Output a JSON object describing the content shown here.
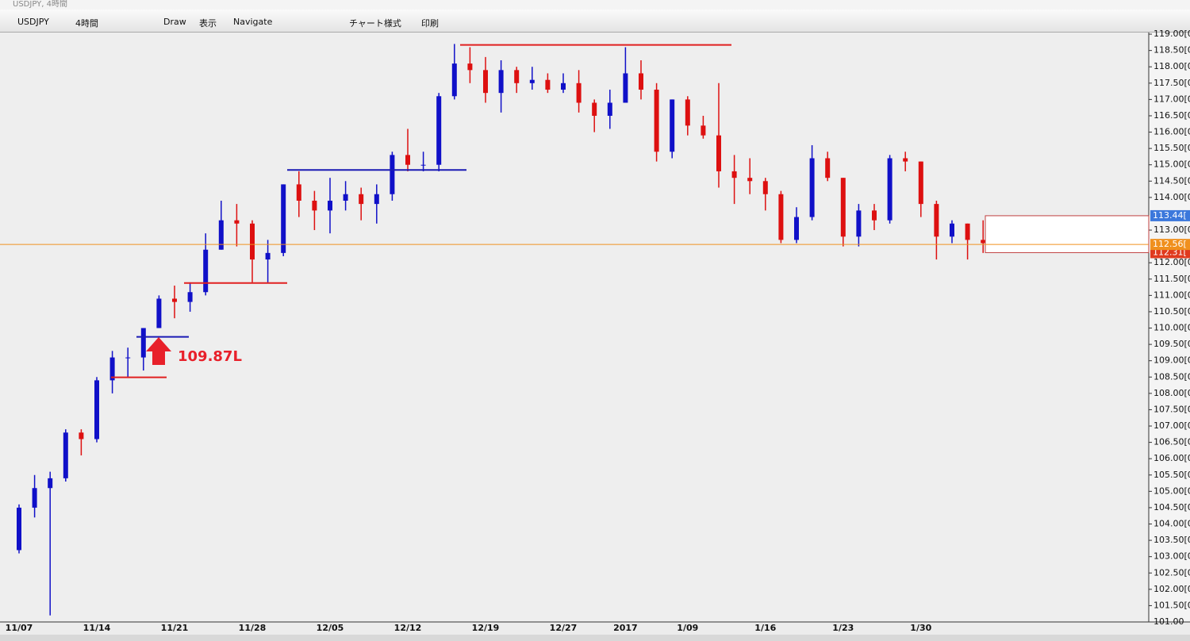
{
  "window": {
    "title": "USDJPY, 4時間"
  },
  "toolbar": {
    "symbol": "USDJPY",
    "timeframe": "4時間",
    "draw": "Draw",
    "view": "表示",
    "navigate": "Navigate",
    "style": "チャート様式",
    "print": "印刷"
  },
  "chart_data": {
    "type": "candlestick",
    "categories": [
      "11/07",
      null,
      null,
      null,
      null,
      "11/14",
      null,
      null,
      null,
      null,
      "11/21",
      null,
      null,
      null,
      null,
      "11/28",
      null,
      null,
      null,
      null,
      "12/05",
      null,
      null,
      null,
      null,
      "12/12",
      null,
      null,
      null,
      null,
      "12/19",
      null,
      null,
      null,
      null,
      "12/27",
      null,
      null,
      null,
      "2017",
      null,
      null,
      null,
      "1/09",
      null,
      null,
      null,
      null,
      "1/16",
      null,
      null,
      null,
      null,
      "1/23",
      null,
      null,
      null,
      null,
      "1/30",
      null,
      null,
      null,
      null
    ],
    "open": [
      103.2,
      104.5,
      105.1,
      105.4,
      106.8,
      106.6,
      108.4,
      109.1,
      109.1,
      110.0,
      110.9,
      110.8,
      111.1,
      112.4,
      113.3,
      113.2,
      112.1,
      112.3,
      114.4,
      113.9,
      113.6,
      113.9,
      114.1,
      113.8,
      114.1,
      115.3,
      115.0,
      115.0,
      117.1,
      118.1,
      117.9,
      117.2,
      117.9,
      117.5,
      117.6,
      117.3,
      117.5,
      116.9,
      116.5,
      116.9,
      117.8,
      117.3,
      115.4,
      117.0,
      116.2,
      115.9,
      114.8,
      114.6,
      114.5,
      114.1,
      112.7,
      113.4,
      115.2,
      114.6,
      112.8,
      113.6,
      113.3,
      115.2,
      115.1,
      113.8,
      112.8,
      113.2,
      112.7
    ],
    "high": [
      104.6,
      105.5,
      105.6,
      106.9,
      106.9,
      108.5,
      109.3,
      109.4,
      110.0,
      111.0,
      111.3,
      111.4,
      112.9,
      113.9,
      113.8,
      113.3,
      112.7,
      114.4,
      114.8,
      114.2,
      114.6,
      114.5,
      114.3,
      114.4,
      115.4,
      116.1,
      115.4,
      117.2,
      118.7,
      118.6,
      118.3,
      118.2,
      118.0,
      118.0,
      117.8,
      117.8,
      117.9,
      117.0,
      117.3,
      118.6,
      118.2,
      117.5,
      117.0,
      117.1,
      116.5,
      117.5,
      115.3,
      115.2,
      114.6,
      114.2,
      113.7,
      115.6,
      115.4,
      114.6,
      113.8,
      113.8,
      115.3,
      115.4,
      115.1,
      113.9,
      113.3,
      113.2,
      113.3
    ],
    "low": [
      103.1,
      104.2,
      101.2,
      105.3,
      106.1,
      106.5,
      108.0,
      108.5,
      108.7,
      110.0,
      110.3,
      110.5,
      111.0,
      112.4,
      112.5,
      111.4,
      111.4,
      112.2,
      113.4,
      113.0,
      112.9,
      113.6,
      113.3,
      113.2,
      113.9,
      114.8,
      114.8,
      114.8,
      117.0,
      117.5,
      116.9,
      116.6,
      117.2,
      117.3,
      117.2,
      117.2,
      116.6,
      116.0,
      116.1,
      116.9,
      117.0,
      115.1,
      115.2,
      115.9,
      115.8,
      114.3,
      113.8,
      114.1,
      113.6,
      112.6,
      112.6,
      113.3,
      114.5,
      112.5,
      112.5,
      113.0,
      113.2,
      114.8,
      113.4,
      112.1,
      112.6,
      112.1,
      112.3
    ],
    "close": [
      104.5,
      105.1,
      105.4,
      106.8,
      106.6,
      108.4,
      109.1,
      109.1,
      110.0,
      110.9,
      110.8,
      111.1,
      112.4,
      113.3,
      113.2,
      112.1,
      112.3,
      114.4,
      113.9,
      113.6,
      113.9,
      114.1,
      113.8,
      114.1,
      115.3,
      115.0,
      115.0,
      117.1,
      118.1,
      117.9,
      117.2,
      117.9,
      117.5,
      117.6,
      117.3,
      117.5,
      116.9,
      116.5,
      116.9,
      117.8,
      117.3,
      115.4,
      117.0,
      116.2,
      115.9,
      114.8,
      114.6,
      114.5,
      114.1,
      112.7,
      113.4,
      115.2,
      114.6,
      112.8,
      113.6,
      113.3,
      115.2,
      115.1,
      113.8,
      112.8,
      113.2,
      112.7,
      112.6
    ],
    "up_color": "#1010c8",
    "down_color": "#dd1010",
    "ylim": [
      101.0,
      119.05
    ],
    "yticks": [
      {
        "value": 119.0,
        "label": "119.00[0"
      },
      {
        "value": 118.5,
        "label": "118.50[0"
      },
      {
        "value": 118.0,
        "label": "118.00[0"
      },
      {
        "value": 117.5,
        "label": "117.50[0"
      },
      {
        "value": 117.0,
        "label": "117.00[0"
      },
      {
        "value": 116.5,
        "label": "116.50[0"
      },
      {
        "value": 116.0,
        "label": "116.00[0"
      },
      {
        "value": 115.5,
        "label": "115.50[0"
      },
      {
        "value": 115.0,
        "label": "115.00[0"
      },
      {
        "value": 114.5,
        "label": "114.50[0"
      },
      {
        "value": 114.0,
        "label": "114.00[0"
      },
      {
        "value": 113.0,
        "label": "113.00[0"
      },
      {
        "value": 112.0,
        "label": "112.00[0"
      },
      {
        "value": 111.5,
        "label": "111.50[0"
      },
      {
        "value": 111.0,
        "label": "111.00[0"
      },
      {
        "value": 110.5,
        "label": "110.50[0"
      },
      {
        "value": 110.0,
        "label": "110.00[0"
      },
      {
        "value": 109.5,
        "label": "109.50[0"
      },
      {
        "value": 109.0,
        "label": "109.00[0"
      },
      {
        "value": 108.5,
        "label": "108.50[0"
      },
      {
        "value": 108.0,
        "label": "108.00[0"
      },
      {
        "value": 107.5,
        "label": "107.50[0"
      },
      {
        "value": 107.0,
        "label": "107.00[0"
      },
      {
        "value": 106.5,
        "label": "106.50[0"
      },
      {
        "value": 106.0,
        "label": "106.00[0"
      },
      {
        "value": 105.5,
        "label": "105.50[0"
      },
      {
        "value": 105.0,
        "label": "105.00[0"
      },
      {
        "value": 104.5,
        "label": "104.50[0"
      },
      {
        "value": 104.0,
        "label": "104.00[0"
      },
      {
        "value": 103.5,
        "label": "103.50[0"
      },
      {
        "value": 103.0,
        "label": "103.00[0"
      },
      {
        "value": 102.5,
        "label": "102.50[0"
      },
      {
        "value": 102.0,
        "label": "102.00[0"
      },
      {
        "value": 101.5,
        "label": "101.50[0"
      },
      {
        "value": 101.0,
        "label": "101.00"
      }
    ],
    "price_line": {
      "value": 112.56,
      "label": "112.56[",
      "color": "#f0901e"
    },
    "markers": [
      {
        "value": 113.44,
        "label": "113.44[",
        "color": "#3c78dc"
      },
      {
        "value": 112.31,
        "label": "112.31[",
        "color": "#e03a1e"
      }
    ],
    "levels": [
      {
        "value": 118.67,
        "color": "#e02020"
      },
      {
        "value": 114.84,
        "color": "#1a1ab4"
      },
      {
        "value": 111.38,
        "color": "#e02020"
      },
      {
        "value": 109.73,
        "color": "#1a1ab4"
      },
      {
        "value": 108.49,
        "color": "#e02020"
      }
    ],
    "annotation": {
      "text": "109.87L",
      "color": "#e8202a"
    }
  }
}
